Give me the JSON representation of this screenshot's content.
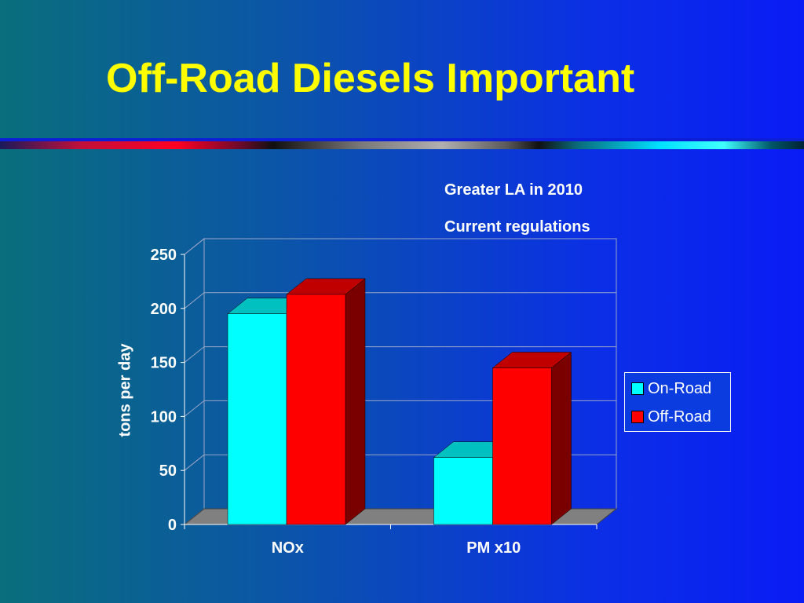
{
  "slide": {
    "title": "Off-Road Diesels Important",
    "subtitle_line1": "Greater LA in 2010",
    "subtitle_line2": "Current regulations"
  },
  "colors": {
    "title": "#ffff00",
    "on_road": "#00ffff",
    "on_road_top": "#00c0c0",
    "off_road": "#ff0000",
    "off_road_side": "#7a0000",
    "off_road_top": "#c00000",
    "floor": "#808080"
  },
  "chart_data": {
    "type": "bar",
    "categories": [
      "NOx",
      "PM x10"
    ],
    "series": [
      {
        "name": "On-Road",
        "values": [
          195,
          62
        ]
      },
      {
        "name": "Off-Road",
        "values": [
          213,
          145
        ]
      }
    ],
    "xlabel": "",
    "ylabel": "tons per day",
    "ylim": [
      0,
      250
    ],
    "yticks": [
      0,
      50,
      100,
      150,
      200,
      250
    ],
    "grid": true,
    "legend_position": "right",
    "style": "3d-clustered"
  }
}
